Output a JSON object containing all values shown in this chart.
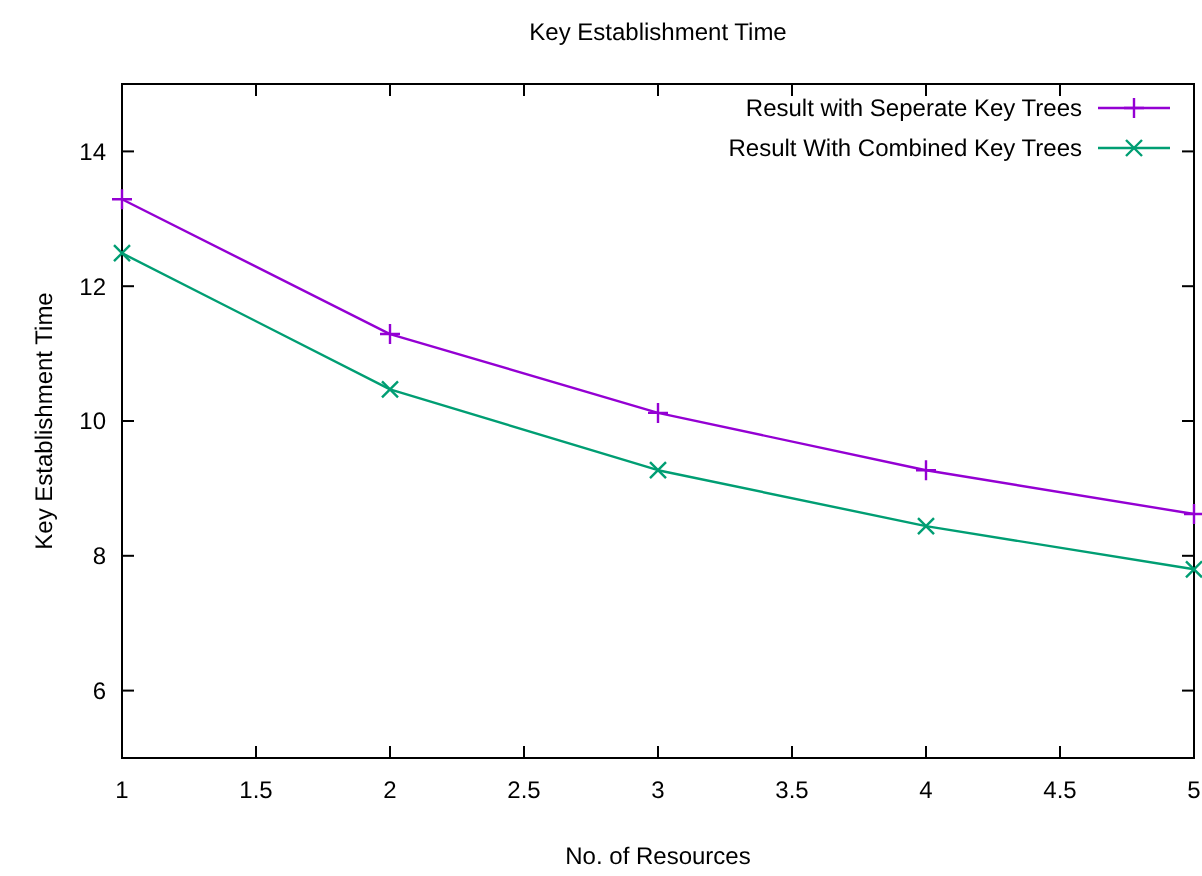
{
  "chart_data": {
    "type": "line",
    "title": "Key Establishment Time",
    "xlabel": "No. of Resources",
    "ylabel": "Key Establishment Time",
    "x": [
      1,
      2,
      3,
      4,
      5
    ],
    "series": [
      {
        "name": "Result with Seperate Key Trees",
        "color": "#9400d3",
        "marker": "plus",
        "values": [
          13.29,
          11.29,
          10.12,
          9.27,
          8.62
        ]
      },
      {
        "name": "Result With Combined Key Trees",
        "color": "#009e73",
        "marker": "cross",
        "values": [
          12.49,
          10.47,
          9.27,
          8.44,
          7.8
        ]
      }
    ],
    "xlim": [
      1,
      5
    ],
    "xticks": [
      1,
      1.5,
      2,
      2.5,
      3,
      3.5,
      4,
      4.5,
      5
    ],
    "ylim": [
      5,
      15
    ],
    "yticks": [
      6,
      8,
      10,
      12,
      14
    ],
    "grid": false,
    "legend": "top right",
    "line_style": "solid"
  }
}
